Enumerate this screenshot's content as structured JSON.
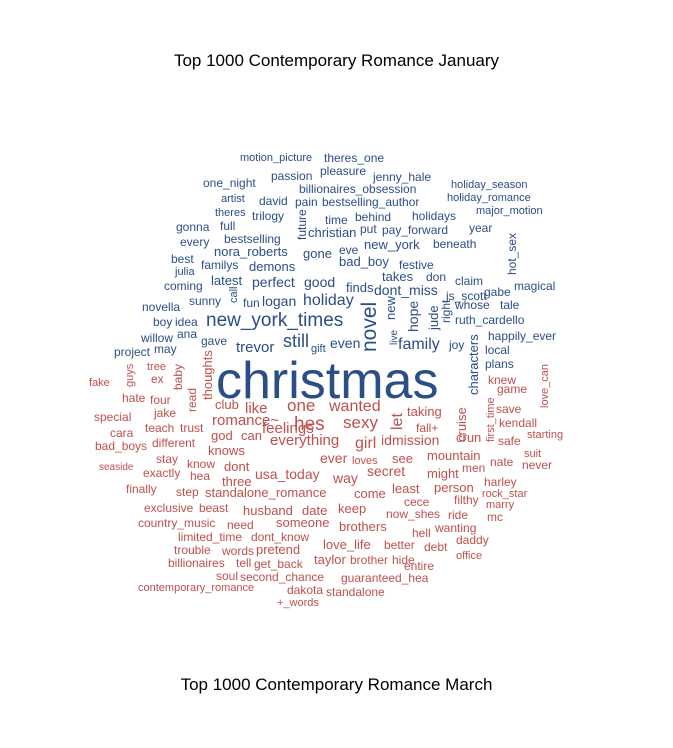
{
  "chart_data": {
    "type": "wordcloud",
    "title_top": "Top 1000 Contemporary Romance January",
    "title_bottom": "Top 1000 Contemporary Romance March",
    "colors": {
      "january": "#2b4e86",
      "march": "#c0504d"
    },
    "words": [
      {
        "t": "christmas",
        "g": "january"
      },
      {
        "t": "new_york_times",
        "g": "january"
      },
      {
        "t": "novel",
        "g": "january"
      },
      {
        "t": "holiday",
        "g": "january"
      },
      {
        "t": "family",
        "g": "january"
      },
      {
        "t": "trevor",
        "g": "january"
      },
      {
        "t": "still",
        "g": "january"
      },
      {
        "t": "dont_miss",
        "g": "january"
      },
      {
        "t": "even",
        "g": "january"
      },
      {
        "t": "new",
        "g": "january"
      },
      {
        "t": "hope",
        "g": "january"
      },
      {
        "t": "jude",
        "g": "january"
      },
      {
        "t": "logan",
        "g": "january"
      },
      {
        "t": "perfect",
        "g": "january"
      },
      {
        "t": "good",
        "g": "january"
      },
      {
        "t": "finds",
        "g": "january"
      },
      {
        "t": "latest",
        "g": "january"
      },
      {
        "t": "demons",
        "g": "january"
      },
      {
        "t": "bad_boy",
        "g": "january"
      },
      {
        "t": "festive",
        "g": "january"
      },
      {
        "t": "new_york",
        "g": "january"
      },
      {
        "t": "nora_roberts",
        "g": "january"
      },
      {
        "t": "bestselling",
        "g": "january"
      },
      {
        "t": "christian",
        "g": "january"
      },
      {
        "t": "gone",
        "g": "january"
      },
      {
        "t": "takes",
        "g": "january"
      },
      {
        "t": "don",
        "g": "january"
      },
      {
        "t": "claim",
        "g": "january"
      },
      {
        "t": "js_scott",
        "g": "january"
      },
      {
        "t": "ruth_cardello",
        "g": "january"
      },
      {
        "t": "whose",
        "g": "january"
      },
      {
        "t": "tale",
        "g": "january"
      },
      {
        "t": "happily_ever",
        "g": "january"
      },
      {
        "t": "local",
        "g": "january"
      },
      {
        "t": "plans",
        "g": "january"
      },
      {
        "t": "joy",
        "g": "january"
      },
      {
        "t": "right",
        "g": "january"
      },
      {
        "t": "characters",
        "g": "january"
      },
      {
        "t": "gave",
        "g": "january"
      },
      {
        "t": "ana",
        "g": "january"
      },
      {
        "t": "may",
        "g": "january"
      },
      {
        "t": "project",
        "g": "january"
      },
      {
        "t": "willow",
        "g": "january"
      },
      {
        "t": "boy",
        "g": "january"
      },
      {
        "t": "idea",
        "g": "january"
      },
      {
        "t": "novella",
        "g": "january"
      },
      {
        "t": "sunny",
        "g": "january"
      },
      {
        "t": "fun",
        "g": "january"
      },
      {
        "t": "call",
        "g": "january"
      },
      {
        "t": "coming",
        "g": "january"
      },
      {
        "t": "familys",
        "g": "january"
      },
      {
        "t": "best",
        "g": "january"
      },
      {
        "t": "julia",
        "g": "january"
      },
      {
        "t": "every",
        "g": "january"
      },
      {
        "t": "gonna",
        "g": "january"
      },
      {
        "t": "full",
        "g": "january"
      },
      {
        "t": "theres",
        "g": "january"
      },
      {
        "t": "trilogy",
        "g": "january"
      },
      {
        "t": "future",
        "g": "january"
      },
      {
        "t": "pain",
        "g": "january"
      },
      {
        "t": "bestselling_author",
        "g": "january"
      },
      {
        "t": "time",
        "g": "january"
      },
      {
        "t": "behind",
        "g": "january"
      },
      {
        "t": "holidays",
        "g": "january"
      },
      {
        "t": "put",
        "g": "january"
      },
      {
        "t": "pay_forward",
        "g": "january"
      },
      {
        "t": "year",
        "g": "january"
      },
      {
        "t": "eve",
        "g": "january"
      },
      {
        "t": "beneath",
        "g": "january"
      },
      {
        "t": "hot_sex",
        "g": "january"
      },
      {
        "t": "gabe",
        "g": "january"
      },
      {
        "t": "magical",
        "g": "january"
      },
      {
        "t": "david",
        "g": "january"
      },
      {
        "t": "artist",
        "g": "january"
      },
      {
        "t": "one_night",
        "g": "january"
      },
      {
        "t": "passion",
        "g": "january"
      },
      {
        "t": "pleasure",
        "g": "january"
      },
      {
        "t": "jenny_hale",
        "g": "january"
      },
      {
        "t": "billionaires_obsession",
        "g": "january"
      },
      {
        "t": "motion_picture",
        "g": "january"
      },
      {
        "t": "theres_one",
        "g": "january"
      },
      {
        "t": "holiday_season",
        "g": "january"
      },
      {
        "t": "holiday_romance",
        "g": "january"
      },
      {
        "t": "major_motion",
        "g": "january"
      },
      {
        "t": "live",
        "g": "january"
      },
      {
        "t": "gift",
        "g": "january"
      },
      {
        "t": "one",
        "g": "march"
      },
      {
        "t": "wanted",
        "g": "march"
      },
      {
        "t": "hes",
        "g": "march"
      },
      {
        "t": "sexy",
        "g": "march"
      },
      {
        "t": "like",
        "g": "march"
      },
      {
        "t": "romance~",
        "g": "march"
      },
      {
        "t": "feelings",
        "g": "march"
      },
      {
        "t": "everything",
        "g": "march"
      },
      {
        "t": "girl",
        "g": "march"
      },
      {
        "t": "id",
        "g": "march"
      },
      {
        "t": "mission",
        "g": "march"
      },
      {
        "t": "let",
        "g": "march"
      },
      {
        "t": "taking",
        "g": "march"
      },
      {
        "t": "fall+",
        "g": "march"
      },
      {
        "t": "cruise",
        "g": "march"
      },
      {
        "t": "crun",
        "g": "march"
      },
      {
        "t": "first_time",
        "g": "march"
      },
      {
        "t": "knew",
        "g": "march"
      },
      {
        "t": "save",
        "g": "march"
      },
      {
        "t": "game",
        "g": "march"
      },
      {
        "t": "love_can",
        "g": "march"
      },
      {
        "t": "kendall",
        "g": "march"
      },
      {
        "t": "starting",
        "g": "march"
      },
      {
        "t": "safe",
        "g": "march"
      },
      {
        "t": "suit",
        "g": "march"
      },
      {
        "t": "never",
        "g": "march"
      },
      {
        "t": "nate",
        "g": "march"
      },
      {
        "t": "men",
        "g": "march"
      },
      {
        "t": "harley",
        "g": "march"
      },
      {
        "t": "rock_star",
        "g": "march"
      },
      {
        "t": "marry",
        "g": "march"
      },
      {
        "t": "mc",
        "g": "march"
      },
      {
        "t": "filthy",
        "g": "march"
      },
      {
        "t": "ride",
        "g": "march"
      },
      {
        "t": "wanting",
        "g": "march"
      },
      {
        "t": "daddy",
        "g": "march"
      },
      {
        "t": "office",
        "g": "march"
      },
      {
        "t": "mountain",
        "g": "march"
      },
      {
        "t": "might",
        "g": "march"
      },
      {
        "t": "person",
        "g": "march"
      },
      {
        "t": "see",
        "g": "march"
      },
      {
        "t": "secret",
        "g": "march"
      },
      {
        "t": "least",
        "g": "march"
      },
      {
        "t": "cece",
        "g": "march"
      },
      {
        "t": "now_shes",
        "g": "march"
      },
      {
        "t": "hell",
        "g": "march"
      },
      {
        "t": "debt",
        "g": "march"
      },
      {
        "t": "entire",
        "g": "march"
      },
      {
        "t": "hide",
        "g": "march"
      },
      {
        "t": "better",
        "g": "march"
      },
      {
        "t": "brothers",
        "g": "march"
      },
      {
        "t": "keep",
        "g": "march"
      },
      {
        "t": "come",
        "g": "march"
      },
      {
        "t": "way",
        "g": "march"
      },
      {
        "t": "ever",
        "g": "march"
      },
      {
        "t": "loves",
        "g": "march"
      },
      {
        "t": "usa_today",
        "g": "march"
      },
      {
        "t": "three",
        "g": "march"
      },
      {
        "t": "dont",
        "g": "march"
      },
      {
        "t": "know",
        "g": "march"
      },
      {
        "t": "knows",
        "g": "march"
      },
      {
        "t": "god",
        "g": "march"
      },
      {
        "t": "can",
        "g": "march"
      },
      {
        "t": "club",
        "g": "march"
      },
      {
        "t": "thoughts",
        "g": "march"
      },
      {
        "t": "read",
        "g": "march"
      },
      {
        "t": "baby",
        "g": "march"
      },
      {
        "t": "ex",
        "g": "march"
      },
      {
        "t": "four",
        "g": "march"
      },
      {
        "t": "tree",
        "g": "march"
      },
      {
        "t": "guys",
        "g": "march"
      },
      {
        "t": "fake",
        "g": "march"
      },
      {
        "t": "hate",
        "g": "march"
      },
      {
        "t": "jake",
        "g": "march"
      },
      {
        "t": "special",
        "g": "march"
      },
      {
        "t": "teach",
        "g": "march"
      },
      {
        "t": "trust",
        "g": "march"
      },
      {
        "t": "cara",
        "g": "march"
      },
      {
        "t": "different",
        "g": "march"
      },
      {
        "t": "bad_boys",
        "g": "march"
      },
      {
        "t": "stay",
        "g": "march"
      },
      {
        "t": "seaside",
        "g": "march"
      },
      {
        "t": "exactly",
        "g": "march"
      },
      {
        "t": "hea",
        "g": "march"
      },
      {
        "t": "finally",
        "g": "march"
      },
      {
        "t": "step",
        "g": "march"
      },
      {
        "t": "standalone_romance",
        "g": "march"
      },
      {
        "t": "exclusive",
        "g": "march"
      },
      {
        "t": "beast",
        "g": "march"
      },
      {
        "t": "husband",
        "g": "march"
      },
      {
        "t": "date",
        "g": "march"
      },
      {
        "t": "country_music",
        "g": "march"
      },
      {
        "t": "need",
        "g": "march"
      },
      {
        "t": "someone",
        "g": "march"
      },
      {
        "t": "limited_time",
        "g": "march"
      },
      {
        "t": "dont_know",
        "g": "march"
      },
      {
        "t": "trouble",
        "g": "march"
      },
      {
        "t": "words",
        "g": "march"
      },
      {
        "t": "pretend",
        "g": "march"
      },
      {
        "t": "love_life",
        "g": "march"
      },
      {
        "t": "billionaires",
        "g": "march"
      },
      {
        "t": "tell",
        "g": "march"
      },
      {
        "t": "get_back",
        "g": "march"
      },
      {
        "t": "taylor",
        "g": "march"
      },
      {
        "t": "brother",
        "g": "march"
      },
      {
        "t": "soul",
        "g": "march"
      },
      {
        "t": "second_chance",
        "g": "march"
      },
      {
        "t": "guaranteed_hea",
        "g": "march"
      },
      {
        "t": "contemporary_romance",
        "g": "march"
      },
      {
        "t": "dakota",
        "g": "march"
      },
      {
        "t": "standalone",
        "g": "march"
      },
      {
        "t": "+_words",
        "g": "march"
      }
    ]
  }
}
